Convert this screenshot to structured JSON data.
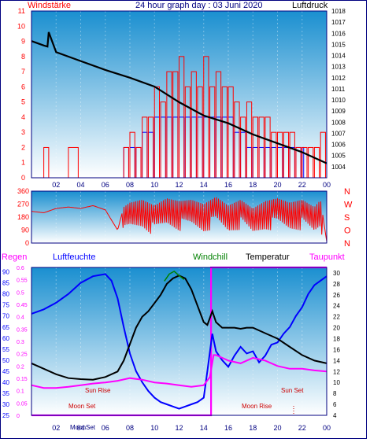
{
  "colors": {
    "wind": "#ff0000",
    "gust": "#0000ff",
    "pressure": "#000000",
    "direction": "#ff0000",
    "humidity": "#0000ff",
    "temperature": "#000000",
    "dewpoint": "#ff00ff",
    "windchill": "#008000",
    "rain": "#ff00ff",
    "sky_top": "#1a8fd0",
    "sky_bottom": "#ffffff",
    "frame": "#000080"
  },
  "chart_data": [
    {
      "type": "bar",
      "title": "24 hour graph day : 03 Juni 2020",
      "ylabel": "Windstärke",
      "y2label": "Luftdruck",
      "x_ticks": [
        "02",
        "04",
        "06",
        "08",
        "10",
        "12",
        "14",
        "16",
        "18",
        "20",
        "22",
        "00"
      ],
      "x_range": [
        0,
        24
      ],
      "ylim": [
        0,
        11
      ],
      "y_ticks": [
        "0",
        "1",
        "2",
        "3",
        "4",
        "5",
        "6",
        "7",
        "8",
        "9",
        "10",
        "11"
      ],
      "y2lim": [
        1003,
        1018
      ],
      "y2_ticks": [
        "1004",
        "1005",
        "1006",
        "1007",
        "1008",
        "1009",
        "1010",
        "1011",
        "1012",
        "1013",
        "1014",
        "1015",
        "1016",
        "1017",
        "1018"
      ],
      "series": [
        {
          "name": "Windstärke",
          "axis": "left",
          "x": [
            0.0,
            1.0,
            1.5,
            2.0,
            3.0,
            4.0,
            5.0,
            6.0,
            7.0,
            7.5,
            8.0,
            8.5,
            9.0,
            9.5,
            10.0,
            10.5,
            11.0,
            11.5,
            12.0,
            12.5,
            13.0,
            13.5,
            14.0,
            14.5,
            15.0,
            15.5,
            16.0,
            16.5,
            17.0,
            17.5,
            18.0,
            18.5,
            19.0,
            19.5,
            20.0,
            20.5,
            21.0,
            21.5,
            22.0,
            22.5,
            23.0,
            23.5,
            24.0
          ],
          "values": [
            0,
            2,
            0,
            0,
            2,
            0,
            0,
            0,
            0,
            2,
            3,
            2,
            4,
            4,
            6,
            5,
            7,
            7,
            8,
            6,
            7,
            6,
            8,
            6,
            7,
            6,
            6,
            5,
            4,
            5,
            4,
            4,
            4,
            3,
            3,
            3,
            3,
            2,
            2,
            2,
            2,
            3,
            0
          ]
        },
        {
          "name": "Böen",
          "axis": "left",
          "x": [
            7.5,
            8.0,
            8.5,
            9.0,
            9.5,
            10.0,
            10.5,
            11.0,
            11.5,
            12.0,
            12.5,
            13.0,
            13.5,
            14.0,
            14.5,
            15.0,
            15.5,
            16.0,
            16.5,
            17.0,
            17.5,
            18.0,
            18.5,
            19.0,
            19.5,
            20.0,
            20.5,
            21.0,
            21.5,
            22.0
          ],
          "values": [
            2,
            2,
            2,
            3,
            3,
            4,
            4,
            4,
            4,
            4,
            4,
            4,
            4,
            4,
            4,
            4,
            4,
            4,
            3,
            3,
            2,
            2,
            2,
            2,
            2,
            2,
            2,
            2,
            2,
            2
          ]
        },
        {
          "name": "Luftdruck",
          "axis": "right",
          "x": [
            0,
            1,
            1.3,
            1.4,
            2,
            4,
            6,
            8,
            10,
            12,
            14,
            16,
            18,
            20,
            22,
            24
          ],
          "values": [
            1015.3,
            1014.9,
            1014.8,
            1016.1,
            1014.3,
            1013.5,
            1012.7,
            1012.0,
            1011.2,
            1009.8,
            1008.6,
            1007.9,
            1006.9,
            1006.1,
            1005.3,
            1004.3
          ]
        }
      ]
    },
    {
      "type": "bar",
      "xlabel": "",
      "ylim": [
        0,
        360
      ],
      "y_ticks": [
        "0",
        "90",
        "180",
        "270",
        "360"
      ],
      "y2_ticks": [
        "N",
        "W",
        "S",
        "O",
        "N"
      ],
      "x_range": [
        0,
        24
      ],
      "series": [
        {
          "name": "Windrichtung",
          "x": [
            0,
            1,
            2,
            3,
            4,
            5,
            6,
            7,
            7.5,
            8,
            9,
            10,
            11,
            12,
            13,
            14,
            15,
            16,
            17,
            18,
            19,
            20,
            21,
            22,
            23,
            23.5,
            24
          ],
          "values": [
            220,
            210,
            240,
            250,
            240,
            260,
            230,
            90,
            250,
            280,
            300,
            260,
            310,
            290,
            300,
            270,
            320,
            260,
            300,
            240,
            290,
            310,
            280,
            300,
            250,
            300,
            10
          ]
        }
      ]
    },
    {
      "type": "line",
      "labels": {
        "rain": "Regen",
        "humidity": "Luftfeuchte",
        "windchill": "Windchill",
        "temperature": "Temperatur",
        "dewpoint": "Taupunkt"
      },
      "x_ticks": [
        "02",
        "04",
        "06",
        "08",
        "10",
        "12",
        "14",
        "16",
        "18",
        "20",
        "22",
        "00"
      ],
      "x_range": [
        0,
        24
      ],
      "hum_ylim": [
        25,
        92
      ],
      "hum_ticks": [
        "25",
        "30",
        "35",
        "40",
        "45",
        "50",
        "55",
        "60",
        "65",
        "70",
        "75",
        "80",
        "85",
        "90"
      ],
      "rain_ylim": [
        0,
        0.6
      ],
      "rain_ticks": [
        "0",
        "0.05",
        "0.1",
        "0.15",
        "0.2",
        "0.25",
        "0.3",
        "0.35",
        "0.4",
        "0.45",
        "0.5",
        "0.55",
        "0.6"
      ],
      "temp_ylim": [
        4,
        31
      ],
      "temp_ticks": [
        "4",
        "6",
        "8",
        "10",
        "12",
        "14",
        "16",
        "18",
        "20",
        "22",
        "24",
        "26",
        "28",
        "30"
      ],
      "annotations": [
        "Sun Rise",
        "Sun Set",
        "Moon Set",
        "Moon Rise",
        "Sun Set",
        "MoonSet"
      ],
      "series": [
        {
          "name": "Luftfeuchte",
          "axis": "humidity",
          "x": [
            0,
            1,
            2,
            3,
            4,
            5,
            6,
            6.5,
            7,
            7.5,
            8,
            8.5,
            9,
            9.5,
            10,
            10.5,
            11,
            11.5,
            12,
            12.5,
            13,
            13.5,
            14,
            14.3,
            14.7,
            15,
            15.5,
            16,
            16.5,
            17,
            17.5,
            18,
            18.5,
            19,
            19.5,
            20,
            20.5,
            21,
            21.5,
            22,
            22.5,
            23,
            23.5,
            24
          ],
          "values": [
            71,
            73,
            76,
            80,
            85,
            88,
            89,
            86,
            78,
            65,
            53,
            45,
            40,
            36,
            33,
            31,
            30,
            29,
            28,
            29,
            30,
            31,
            33,
            45,
            62,
            54,
            50,
            47,
            52,
            56,
            53,
            54,
            49,
            52,
            57,
            58,
            62,
            65,
            70,
            74,
            80,
            84,
            86,
            88
          ]
        },
        {
          "name": "Temperatur",
          "axis": "temp",
          "x": [
            0,
            1,
            2,
            3,
            4,
            5,
            6,
            7,
            7.5,
            8,
            8.5,
            9,
            9.5,
            10,
            10.5,
            11,
            11.5,
            12,
            12.5,
            13,
            13.5,
            14,
            14.3,
            14.7,
            15,
            15.5,
            16,
            16.5,
            17,
            17.5,
            18,
            19,
            20,
            21,
            22,
            23,
            24
          ],
          "values": [
            13.5,
            12.5,
            11.5,
            10.8,
            10.6,
            10.5,
            11,
            12,
            14,
            17,
            20,
            22,
            23,
            24.5,
            26,
            28,
            29,
            29.5,
            29,
            27,
            24,
            21,
            20.5,
            23,
            21,
            20,
            20,
            20,
            19.8,
            20,
            20,
            19,
            18,
            16.5,
            15,
            14,
            13.5
          ]
        },
        {
          "name": "Taupunkt",
          "axis": "temp",
          "x": [
            0,
            1,
            2,
            3,
            4,
            5,
            6,
            7,
            8,
            9,
            10,
            11,
            12,
            13,
            14,
            14.5,
            14.8,
            15,
            16,
            17,
            18,
            19,
            20,
            21,
            22,
            23,
            24
          ],
          "values": [
            9.5,
            9,
            9,
            9.2,
            9.5,
            9.8,
            10,
            10.3,
            10.8,
            10.5,
            10,
            9.8,
            9.5,
            9.2,
            9.5,
            11,
            15,
            15,
            14,
            13.5,
            14.5,
            14,
            13,
            12.5,
            12.5,
            12.2,
            12
          ]
        },
        {
          "name": "Windchill",
          "axis": "temp",
          "x": [
            10.8,
            11.2,
            11.6,
            12,
            12.4
          ],
          "values": [
            28.5,
            29.8,
            30.3,
            29.5,
            28.8
          ]
        },
        {
          "name": "Regen",
          "axis": "rain",
          "x": [
            0,
            14.6,
            14.6,
            24
          ],
          "values": [
            0,
            0,
            0.6,
            0.6
          ]
        }
      ]
    }
  ]
}
